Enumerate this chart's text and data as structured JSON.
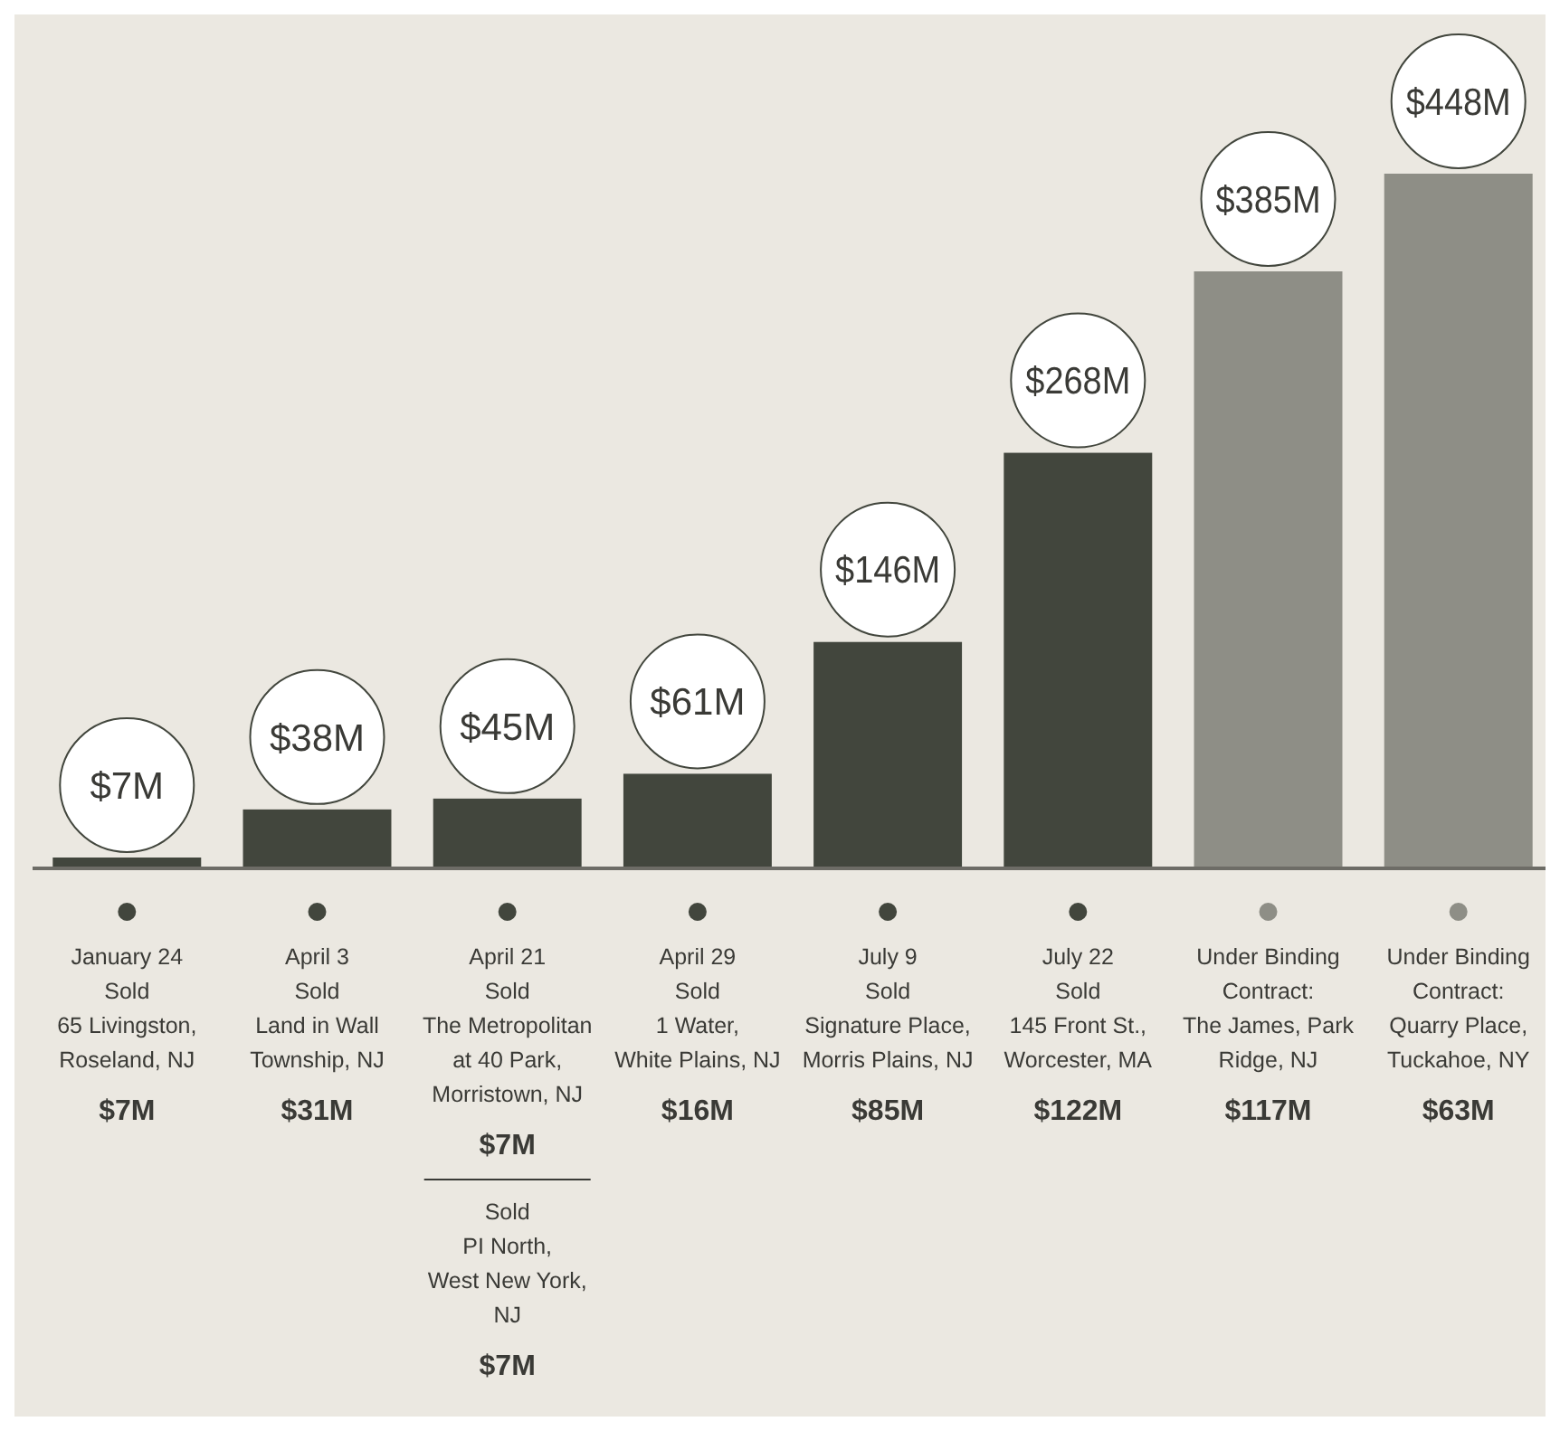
{
  "chart_data": {
    "type": "bar",
    "categories": [
      "January 24\nSold\n65 Livingston,\nRoseland, NJ\n$7M",
      "April 3\nSold\nLand in Wall\nTownship, NJ\n$31M",
      "April 21\nSold\nThe Metropolitan\nat 40 Park,\nMorristown, NJ\n$7M",
      "April 29\nSold\n1 Water,\nWhite Plains, NJ\n$16M",
      "July 9\nSold\nSignature Place,\nMorris Plains, NJ\n$85M",
      "July 22\nSold\n145 Front St.,\nWorcester, MA\n$122M",
      "Under Binding\nContract:\nThe James, Park\nRidge, NJ\n$117M",
      "Under Binding\nContract:\nQuarry Place,\nTuckahoe, NY\n$63M"
    ],
    "values": [
      7,
      38,
      45,
      61,
      146,
      268,
      385,
      448
    ],
    "colors": [
      "#42463d",
      "#42463d",
      "#42463d",
      "#42463d",
      "#42463d",
      "#42463d",
      "#8e8e86",
      "#8e8e86"
    ],
    "value_labels": [
      "$7M",
      "$38M",
      "$45M",
      "$61M",
      "$146M",
      "$268M",
      "$385M",
      "$448M"
    ],
    "annotations": [
      "Sold\nPI North,\nWest New York,\nNJ\n$7M"
    ]
  }
}
